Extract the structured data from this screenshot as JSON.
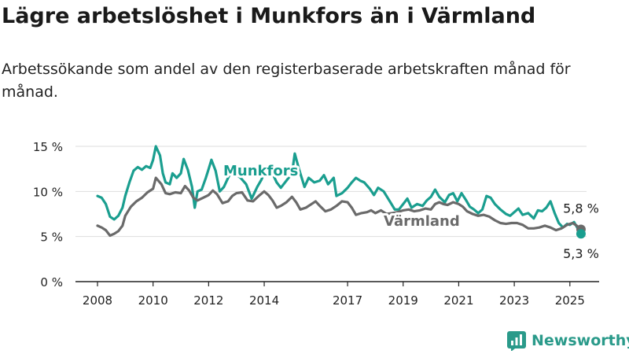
{
  "header": {
    "title": "Lägre arbetslöshet i Munkfors än i Värmland",
    "subtitle": "Arbetssökande som andel av den registerbaserade arbetskraften månad för månad."
  },
  "brand": {
    "name": "Newsworthy"
  },
  "colors": {
    "munkfors": "#1a9e8f",
    "varmland": "#6a6a6a",
    "grid": "#dddddd",
    "axis": "#222222"
  },
  "chart_data": {
    "type": "line",
    "title": "Lägre arbetslöshet i Munkfors än i Värmland",
    "subtitle": "Arbetssökande som andel av den registerbaserade arbetskraften månad för månad.",
    "xlim": [
      2008,
      2025.6
    ],
    "ylim": [
      0,
      15
    ],
    "x_ticks": [
      2008,
      2010,
      2012,
      2014,
      2017,
      2019,
      2021,
      2023,
      2025
    ],
    "x_tick_labels": [
      "2008",
      "2010",
      "2012",
      "2014",
      "2017",
      "2019",
      "2021",
      "2023",
      "2025"
    ],
    "y_ticks": [
      0,
      5,
      10,
      15
    ],
    "y_tick_labels": [
      "0 %",
      "5 %",
      "10 %",
      "15 %"
    ],
    "grid": true,
    "legend": "inline labels",
    "series": [
      {
        "name": "Munkfors",
        "end_label": "5,3 %",
        "points": [
          [
            2008.0,
            9.5
          ],
          [
            2008.15,
            9.3
          ],
          [
            2008.3,
            8.6
          ],
          [
            2008.45,
            7.2
          ],
          [
            2008.6,
            6.9
          ],
          [
            2008.75,
            7.3
          ],
          [
            2008.9,
            8.2
          ],
          [
            2009.0,
            9.5
          ],
          [
            2009.15,
            11.0
          ],
          [
            2009.3,
            12.3
          ],
          [
            2009.45,
            12.7
          ],
          [
            2009.6,
            12.4
          ],
          [
            2009.75,
            12.8
          ],
          [
            2009.9,
            12.6
          ],
          [
            2010.0,
            13.5
          ],
          [
            2010.1,
            15.0
          ],
          [
            2010.25,
            14.0
          ],
          [
            2010.35,
            12.0
          ],
          [
            2010.45,
            11.0
          ],
          [
            2010.6,
            10.8
          ],
          [
            2010.7,
            12.0
          ],
          [
            2010.85,
            11.5
          ],
          [
            2011.0,
            12.0
          ],
          [
            2011.1,
            13.6
          ],
          [
            2011.25,
            12.4
          ],
          [
            2011.4,
            10.5
          ],
          [
            2011.5,
            8.2
          ],
          [
            2011.6,
            10.0
          ],
          [
            2011.75,
            10.2
          ],
          [
            2011.9,
            11.5
          ],
          [
            2012.0,
            12.5
          ],
          [
            2012.1,
            13.5
          ],
          [
            2012.25,
            12.3
          ],
          [
            2012.4,
            10.0
          ],
          [
            2012.55,
            10.5
          ],
          [
            2012.7,
            11.5
          ],
          [
            2012.85,
            12.4
          ],
          [
            2012.95,
            12.0
          ],
          [
            2013.15,
            11.5
          ],
          [
            2013.35,
            10.8
          ],
          [
            2013.55,
            9.2
          ],
          [
            2013.75,
            10.5
          ],
          [
            2013.9,
            11.3
          ],
          [
            2014.0,
            12.0
          ],
          [
            2014.15,
            12.8
          ],
          [
            2014.3,
            12.0
          ],
          [
            2014.45,
            11.0
          ],
          [
            2014.6,
            10.4
          ],
          [
            2014.8,
            11.2
          ],
          [
            2015.0,
            12.0
          ],
          [
            2015.1,
            14.2
          ],
          [
            2015.25,
            12.5
          ],
          [
            2015.45,
            10.5
          ],
          [
            2015.6,
            11.5
          ],
          [
            2015.8,
            11.0
          ],
          [
            2016.0,
            11.2
          ],
          [
            2016.15,
            11.8
          ],
          [
            2016.3,
            10.8
          ],
          [
            2016.5,
            11.5
          ],
          [
            2016.6,
            9.5
          ],
          [
            2016.8,
            9.8
          ],
          [
            2017.0,
            10.4
          ],
          [
            2017.15,
            11.0
          ],
          [
            2017.3,
            11.5
          ],
          [
            2017.45,
            11.2
          ],
          [
            2017.6,
            11.0
          ],
          [
            2017.8,
            10.3
          ],
          [
            2017.95,
            9.6
          ],
          [
            2018.1,
            10.4
          ],
          [
            2018.3,
            10.0
          ],
          [
            2018.5,
            9.0
          ],
          [
            2018.7,
            8.0
          ],
          [
            2018.85,
            8.0
          ],
          [
            2019.0,
            8.6
          ],
          [
            2019.15,
            9.2
          ],
          [
            2019.3,
            8.2
          ],
          [
            2019.5,
            8.6
          ],
          [
            2019.7,
            8.4
          ],
          [
            2019.85,
            9.0
          ],
          [
            2020.0,
            9.4
          ],
          [
            2020.15,
            10.2
          ],
          [
            2020.3,
            9.4
          ],
          [
            2020.5,
            8.8
          ],
          [
            2020.65,
            9.6
          ],
          [
            2020.8,
            9.8
          ],
          [
            2020.95,
            8.9
          ],
          [
            2021.1,
            9.8
          ],
          [
            2021.25,
            9.1
          ],
          [
            2021.4,
            8.3
          ],
          [
            2021.55,
            8.0
          ],
          [
            2021.7,
            7.6
          ],
          [
            2021.85,
            8.0
          ],
          [
            2022.0,
            9.5
          ],
          [
            2022.15,
            9.3
          ],
          [
            2022.3,
            8.6
          ],
          [
            2022.5,
            8.0
          ],
          [
            2022.7,
            7.5
          ],
          [
            2022.85,
            7.3
          ],
          [
            2023.0,
            7.7
          ],
          [
            2023.15,
            8.1
          ],
          [
            2023.3,
            7.4
          ],
          [
            2023.5,
            7.6
          ],
          [
            2023.7,
            7.0
          ],
          [
            2023.85,
            7.9
          ],
          [
            2024.0,
            7.8
          ],
          [
            2024.15,
            8.2
          ],
          [
            2024.3,
            8.9
          ],
          [
            2024.45,
            7.6
          ],
          [
            2024.6,
            6.5
          ],
          [
            2024.75,
            6.0
          ],
          [
            2024.9,
            6.4
          ],
          [
            2025.0,
            6.3
          ],
          [
            2025.15,
            6.6
          ],
          [
            2025.3,
            5.8
          ],
          [
            2025.4,
            5.3
          ]
        ]
      },
      {
        "name": "Värmland",
        "end_label": "5,8 %",
        "points": [
          [
            2008.0,
            6.2
          ],
          [
            2008.15,
            6.0
          ],
          [
            2008.3,
            5.7
          ],
          [
            2008.45,
            5.1
          ],
          [
            2008.6,
            5.3
          ],
          [
            2008.75,
            5.6
          ],
          [
            2008.9,
            6.2
          ],
          [
            2009.0,
            7.3
          ],
          [
            2009.2,
            8.3
          ],
          [
            2009.4,
            8.9
          ],
          [
            2009.6,
            9.3
          ],
          [
            2009.8,
            9.9
          ],
          [
            2010.0,
            10.3
          ],
          [
            2010.1,
            11.5
          ],
          [
            2010.3,
            10.8
          ],
          [
            2010.45,
            9.8
          ],
          [
            2010.6,
            9.7
          ],
          [
            2010.8,
            9.9
          ],
          [
            2011.0,
            9.8
          ],
          [
            2011.15,
            10.6
          ],
          [
            2011.3,
            10.1
          ],
          [
            2011.45,
            9.3
          ],
          [
            2011.6,
            9.0
          ],
          [
            2011.8,
            9.3
          ],
          [
            2012.0,
            9.6
          ],
          [
            2012.15,
            10.1
          ],
          [
            2012.3,
            9.7
          ],
          [
            2012.5,
            8.7
          ],
          [
            2012.7,
            8.9
          ],
          [
            2012.85,
            9.5
          ],
          [
            2013.0,
            9.8
          ],
          [
            2013.2,
            9.9
          ],
          [
            2013.4,
            9.0
          ],
          [
            2013.6,
            8.9
          ],
          [
            2013.8,
            9.5
          ],
          [
            2014.0,
            10.0
          ],
          [
            2014.15,
            9.6
          ],
          [
            2014.3,
            9.0
          ],
          [
            2014.45,
            8.2
          ],
          [
            2014.6,
            8.4
          ],
          [
            2014.8,
            8.8
          ],
          [
            2015.0,
            9.4
          ],
          [
            2015.15,
            8.8
          ],
          [
            2015.3,
            8.0
          ],
          [
            2015.5,
            8.2
          ],
          [
            2015.7,
            8.6
          ],
          [
            2015.85,
            8.9
          ],
          [
            2016.0,
            8.4
          ],
          [
            2016.2,
            7.8
          ],
          [
            2016.4,
            8.0
          ],
          [
            2016.6,
            8.4
          ],
          [
            2016.8,
            8.9
          ],
          [
            2017.0,
            8.8
          ],
          [
            2017.15,
            8.2
          ],
          [
            2017.3,
            7.4
          ],
          [
            2017.5,
            7.6
          ],
          [
            2017.7,
            7.7
          ],
          [
            2017.85,
            7.9
          ],
          [
            2018.0,
            7.6
          ],
          [
            2018.2,
            7.9
          ],
          [
            2018.4,
            7.5
          ],
          [
            2018.6,
            7.6
          ],
          [
            2018.8,
            7.7
          ],
          [
            2019.0,
            7.9
          ],
          [
            2019.2,
            8.0
          ],
          [
            2019.4,
            7.8
          ],
          [
            2019.6,
            7.9
          ],
          [
            2019.8,
            8.1
          ],
          [
            2020.0,
            8.0
          ],
          [
            2020.15,
            8.6
          ],
          [
            2020.3,
            8.8
          ],
          [
            2020.45,
            8.6
          ],
          [
            2020.6,
            8.5
          ],
          [
            2020.8,
            8.8
          ],
          [
            2021.0,
            8.6
          ],
          [
            2021.15,
            8.3
          ],
          [
            2021.3,
            7.8
          ],
          [
            2021.5,
            7.5
          ],
          [
            2021.7,
            7.3
          ],
          [
            2021.9,
            7.4
          ],
          [
            2022.1,
            7.2
          ],
          [
            2022.3,
            6.8
          ],
          [
            2022.5,
            6.5
          ],
          [
            2022.7,
            6.4
          ],
          [
            2022.9,
            6.5
          ],
          [
            2023.1,
            6.5
          ],
          [
            2023.3,
            6.3
          ],
          [
            2023.5,
            5.9
          ],
          [
            2023.7,
            5.9
          ],
          [
            2023.9,
            6.0
          ],
          [
            2024.1,
            6.2
          ],
          [
            2024.3,
            6.0
          ],
          [
            2024.5,
            5.7
          ],
          [
            2024.7,
            5.9
          ],
          [
            2024.9,
            6.3
          ],
          [
            2025.1,
            6.5
          ],
          [
            2025.25,
            6.2
          ],
          [
            2025.4,
            5.8
          ]
        ]
      }
    ]
  }
}
